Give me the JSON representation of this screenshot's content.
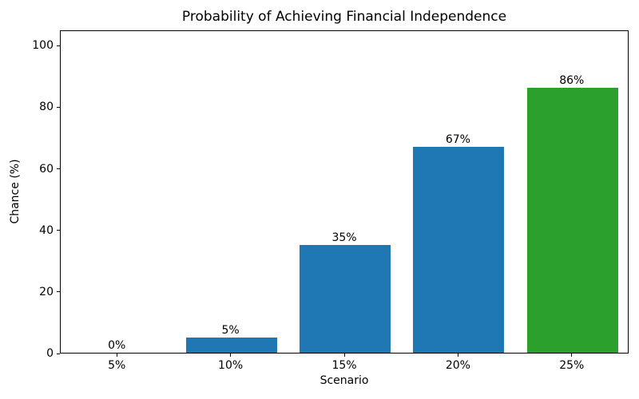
{
  "chart_data": {
    "type": "bar",
    "title": "Probability of Achieving Financial Independence",
    "xlabel": "Scenario",
    "ylabel": "Chance (%)",
    "categories": [
      "5%",
      "10%",
      "15%",
      "20%",
      "25%"
    ],
    "values": [
      0,
      5,
      35,
      67,
      86
    ],
    "bar_labels": [
      "0%",
      "5%",
      "35%",
      "67%",
      "86%"
    ],
    "bar_colors": [
      "#1f77b4",
      "#1f77b4",
      "#1f77b4",
      "#1f77b4",
      "#2ca02c"
    ],
    "yticks": [
      0,
      20,
      40,
      60,
      80,
      100
    ],
    "ylim": [
      0,
      105
    ],
    "grid": false,
    "legend_position": "none",
    "background_color": "#ffffff",
    "spine_color": "#000000",
    "text_color": "#000000"
  }
}
